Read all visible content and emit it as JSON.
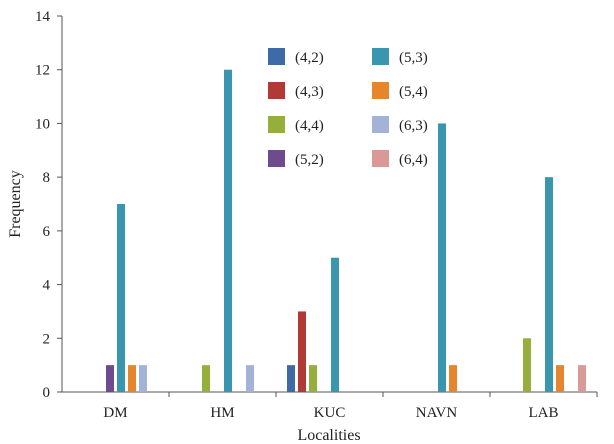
{
  "chart_data": {
    "type": "bar",
    "xlabel": "Localities",
    "ylabel": "Frequency",
    "ylim": [
      0,
      14
    ],
    "yticks": [
      0,
      2,
      4,
      6,
      8,
      10,
      12,
      14
    ],
    "grid": false,
    "legend_position": "top-center",
    "categories": [
      "DM",
      "HM",
      "KUC",
      "NAVN",
      "LAB"
    ],
    "series": [
      {
        "name": "(4,2)",
        "color": "#3E6AA8",
        "values": [
          0,
          0,
          1,
          0,
          0
        ]
      },
      {
        "name": "(4,3)",
        "color": "#B23A36",
        "values": [
          0,
          0,
          3,
          0,
          0
        ]
      },
      {
        "name": "(4,4)",
        "color": "#96AE3C",
        "values": [
          0,
          1,
          1,
          0,
          2
        ]
      },
      {
        "name": "(5,2)",
        "color": "#6E4B8C",
        "values": [
          1,
          0,
          0,
          0,
          0
        ]
      },
      {
        "name": "(5,3)",
        "color": "#3A95AE",
        "values": [
          7,
          12,
          5,
          10,
          8
        ]
      },
      {
        "name": "(5,4)",
        "color": "#E5852E",
        "values": [
          1,
          0,
          0,
          1,
          1
        ]
      },
      {
        "name": "(6,3)",
        "color": "#A3B3D8",
        "values": [
          1,
          1,
          0,
          0,
          0
        ]
      },
      {
        "name": "(6,4)",
        "color": "#D99A97",
        "values": [
          0,
          0,
          0,
          0,
          1
        ]
      }
    ]
  }
}
